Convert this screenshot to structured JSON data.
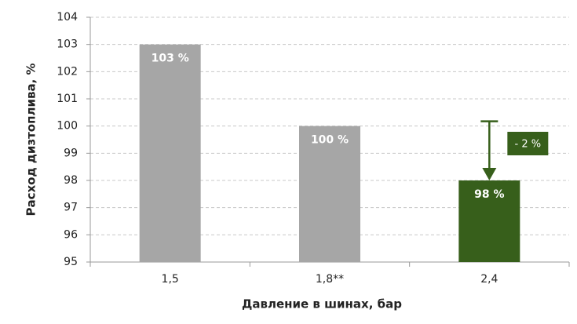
{
  "chart_data": {
    "type": "bar",
    "y_label": "Расход дизтоплива, %",
    "x_label": "Давление в шинах, бар",
    "categories": [
      "1,5",
      "1,8**",
      "2,4"
    ],
    "values": [
      103,
      100,
      98
    ],
    "value_labels": [
      "103 %",
      "100 %",
      "98 %"
    ],
    "colors": [
      "#a6a6a6",
      "#a6a6a6",
      "#375f1b"
    ],
    "annotation": "- 2 %",
    "ylim": [
      95,
      104
    ],
    "yticks": [
      95,
      96,
      97,
      98,
      99,
      100,
      101,
      102,
      103,
      104
    ],
    "grid": true
  }
}
